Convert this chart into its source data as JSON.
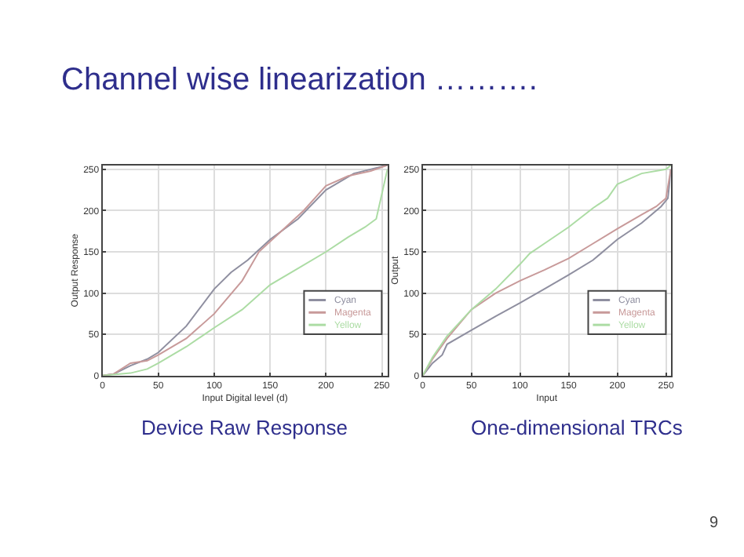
{
  "chart_data": [
    {
      "type": "line",
      "title": "Channel wise linearization ……….",
      "xlabel": "Input Digital level (d)",
      "ylabel": "Output Response",
      "annotations": [
        "Device Raw Response"
      ],
      "xlim": [
        0,
        255
      ],
      "ylim": [
        0,
        255
      ],
      "xticks": [
        0,
        50,
        100,
        150,
        200,
        250
      ],
      "yticks": [
        0,
        50,
        100,
        150,
        200,
        250
      ],
      "grid": true,
      "legend": "right",
      "marker": "none",
      "line_style": "solid",
      "series": [
        {
          "name": "Cyan",
          "color": "#8f8fa0",
          "x": [
            0,
            10,
            25,
            40,
            50,
            75,
            100,
            115,
            130,
            150,
            175,
            200,
            225,
            255
          ],
          "values": [
            0,
            2,
            12,
            20,
            28,
            60,
            105,
            125,
            140,
            165,
            190,
            225,
            245,
            255
          ]
        },
        {
          "name": "Magenta",
          "color": "#c89a9a",
          "x": [
            0,
            10,
            25,
            40,
            50,
            75,
            100,
            125,
            140,
            160,
            180,
            200,
            220,
            240,
            255
          ],
          "values": [
            0,
            2,
            15,
            18,
            25,
            45,
            75,
            115,
            150,
            175,
            200,
            230,
            242,
            248,
            255
          ]
        },
        {
          "name": "Yellow",
          "color": "#acdca4",
          "x": [
            0,
            25,
            40,
            50,
            75,
            100,
            125,
            150,
            175,
            200,
            220,
            235,
            245,
            255
          ],
          "values": [
            0,
            3,
            8,
            15,
            35,
            58,
            80,
            110,
            130,
            150,
            168,
            180,
            190,
            250
          ]
        }
      ]
    },
    {
      "type": "line",
      "xlabel": "Input",
      "ylabel": "Output",
      "annotations": [
        "One-dimensional TRCs",
        "9"
      ],
      "xlim": [
        0,
        255
      ],
      "ylim": [
        0,
        255
      ],
      "xticks": [
        0,
        50,
        100,
        150,
        200,
        250
      ],
      "yticks": [
        0,
        50,
        100,
        150,
        200,
        250
      ],
      "grid": true,
      "legend": "right",
      "marker": "none",
      "line_style": "solid",
      "series": [
        {
          "name": "Cyan",
          "color": "#8f8fa0",
          "x": [
            0,
            10,
            20,
            25,
            50,
            75,
            100,
            125,
            150,
            175,
            200,
            225,
            245,
            252,
            255
          ],
          "values": [
            0,
            15,
            25,
            38,
            55,
            72,
            88,
            105,
            122,
            140,
            165,
            185,
            205,
            215,
            250
          ]
        },
        {
          "name": "Magenta",
          "color": "#c89a9a",
          "x": [
            0,
            10,
            25,
            50,
            75,
            100,
            125,
            150,
            175,
            200,
            225,
            240,
            250,
            255
          ],
          "values": [
            0,
            20,
            45,
            80,
            100,
            115,
            128,
            142,
            160,
            178,
            195,
            205,
            215,
            250
          ]
        },
        {
          "name": "Yellow",
          "color": "#acdca4",
          "x": [
            0,
            10,
            25,
            50,
            75,
            100,
            110,
            125,
            150,
            175,
            190,
            200,
            225,
            250,
            255
          ],
          "values": [
            0,
            22,
            48,
            80,
            105,
            135,
            148,
            160,
            180,
            203,
            215,
            232,
            245,
            250,
            255
          ]
        }
      ]
    }
  ]
}
